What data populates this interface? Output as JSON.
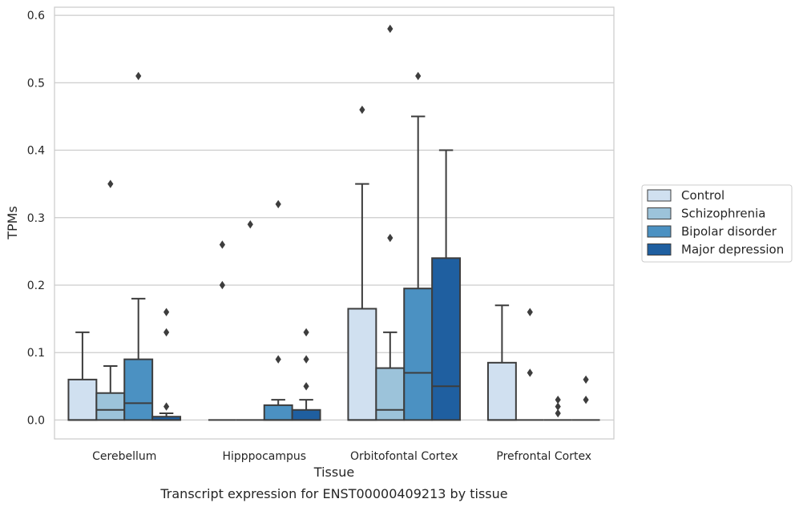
{
  "chart_data": {
    "type": "box",
    "title": "",
    "caption": "Transcript expression for ENST00000409213 by tissue",
    "xlabel": "Tissue",
    "ylabel": "TPMs",
    "ylim": [
      -0.028,
      0.612
    ],
    "yticks": [
      0.0,
      0.1,
      0.2,
      0.3,
      0.4,
      0.5,
      0.6
    ],
    "ytick_labels": [
      "0.0",
      "0.1",
      "0.2",
      "0.3",
      "0.4",
      "0.5",
      "0.6"
    ],
    "grid": "horizontal",
    "legend_position": "right",
    "categories": [
      "Cerebellum",
      "Hipppocampus",
      "Orbitofontal Cortex",
      "Prefrontal Cortex"
    ],
    "series": [
      {
        "name": "Control",
        "color": "#d0e0f0",
        "boxes": [
          {
            "whisker_low": 0,
            "q1": 0,
            "median": 0,
            "q3": 0.06,
            "whisker_high": 0.13,
            "outliers": []
          },
          {
            "whisker_low": 0,
            "q1": 0,
            "median": 0,
            "q3": 0,
            "whisker_high": 0,
            "outliers": [
              0.2,
              0.26
            ]
          },
          {
            "whisker_low": 0,
            "q1": 0,
            "median": 0,
            "q3": 0.165,
            "whisker_high": 0.35,
            "outliers": [
              0.46
            ]
          },
          {
            "whisker_low": 0,
            "q1": 0,
            "median": 0,
            "q3": 0.085,
            "whisker_high": 0.17,
            "outliers": []
          }
        ]
      },
      {
        "name": "Schizophrenia",
        "color": "#9cc3da",
        "boxes": [
          {
            "whisker_low": 0,
            "q1": 0,
            "median": 0.015,
            "q3": 0.04,
            "whisker_high": 0.08,
            "outliers": [
              0.35
            ]
          },
          {
            "whisker_low": 0,
            "q1": 0,
            "median": 0,
            "q3": 0,
            "whisker_high": 0,
            "outliers": [
              0.29
            ]
          },
          {
            "whisker_low": 0,
            "q1": 0,
            "median": 0.015,
            "q3": 0.077,
            "whisker_high": 0.13,
            "outliers": [
              0.27,
              0.58
            ]
          },
          {
            "whisker_low": 0,
            "q1": 0,
            "median": 0,
            "q3": 0,
            "whisker_high": 0,
            "outliers": [
              0.07,
              0.16
            ]
          }
        ]
      },
      {
        "name": "Bipolar disorder",
        "color": "#4b91c2",
        "boxes": [
          {
            "whisker_low": 0,
            "q1": 0,
            "median": 0.025,
            "q3": 0.09,
            "whisker_high": 0.18,
            "outliers": [
              0.51
            ]
          },
          {
            "whisker_low": 0,
            "q1": 0,
            "median": 0,
            "q3": 0.022,
            "whisker_high": 0.03,
            "outliers": [
              0.09,
              0.32
            ]
          },
          {
            "whisker_low": 0,
            "q1": 0,
            "median": 0.07,
            "q3": 0.195,
            "whisker_high": 0.45,
            "outliers": [
              0.51
            ]
          },
          {
            "whisker_low": 0,
            "q1": 0,
            "median": 0,
            "q3": 0,
            "whisker_high": 0,
            "outliers": [
              0.01,
              0.02,
              0.03
            ]
          }
        ]
      },
      {
        "name": "Major depression",
        "color": "#1f5fa0",
        "boxes": [
          {
            "whisker_low": 0,
            "q1": 0,
            "median": 0,
            "q3": 0.005,
            "whisker_high": 0.01,
            "outliers": [
              0.02,
              0.13,
              0.16
            ]
          },
          {
            "whisker_low": 0,
            "q1": 0,
            "median": 0,
            "q3": 0.015,
            "whisker_high": 0.03,
            "outliers": [
              0.05,
              0.09,
              0.13
            ]
          },
          {
            "whisker_low": 0,
            "q1": 0,
            "median": 0.05,
            "q3": 0.24,
            "whisker_high": 0.4,
            "outliers": []
          },
          {
            "whisker_low": 0,
            "q1": 0,
            "median": 0,
            "q3": 0,
            "whisker_high": 0,
            "outliers": [
              0.03,
              0.06
            ]
          }
        ]
      }
    ]
  }
}
